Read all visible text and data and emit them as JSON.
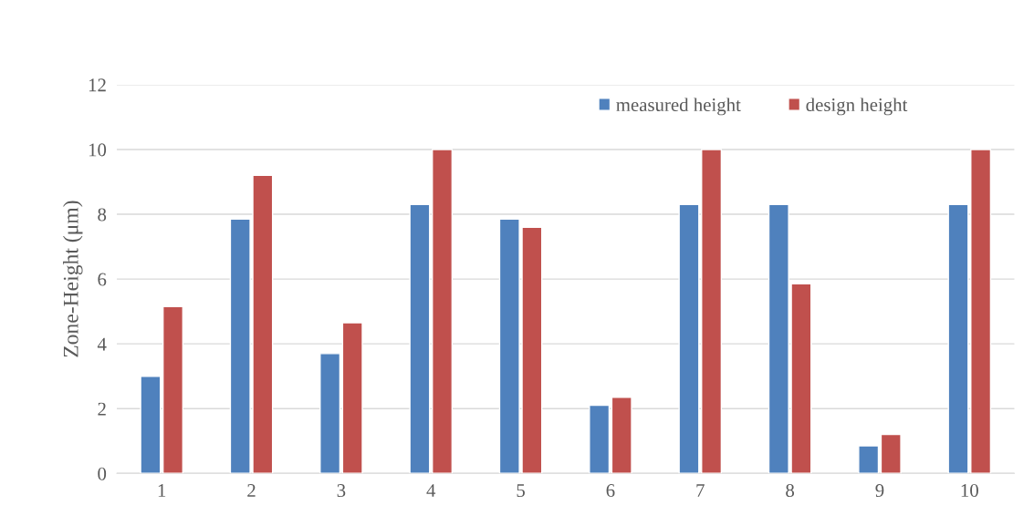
{
  "chart_data": {
    "type": "bar",
    "ylabel": "Zone-Height (μm)",
    "categories": [
      "1",
      "2",
      "3",
      "4",
      "5",
      "6",
      "7",
      "8",
      "9",
      "10"
    ],
    "series": [
      {
        "name": "measured height",
        "color": "#4f81bd",
        "values": [
          3.0,
          7.85,
          3.7,
          8.3,
          7.85,
          2.1,
          8.3,
          8.3,
          0.85,
          8.3
        ]
      },
      {
        "name": "design height",
        "color": "#c0504d",
        "values": [
          5.15,
          9.2,
          4.65,
          10.0,
          7.6,
          2.35,
          10.0,
          5.85,
          1.2,
          10.0
        ]
      }
    ],
    "ylim": [
      0,
      12
    ],
    "yticks": [
      0,
      2,
      4,
      6,
      8,
      10,
      12
    ],
    "grid": "y",
    "legend": "top right"
  }
}
